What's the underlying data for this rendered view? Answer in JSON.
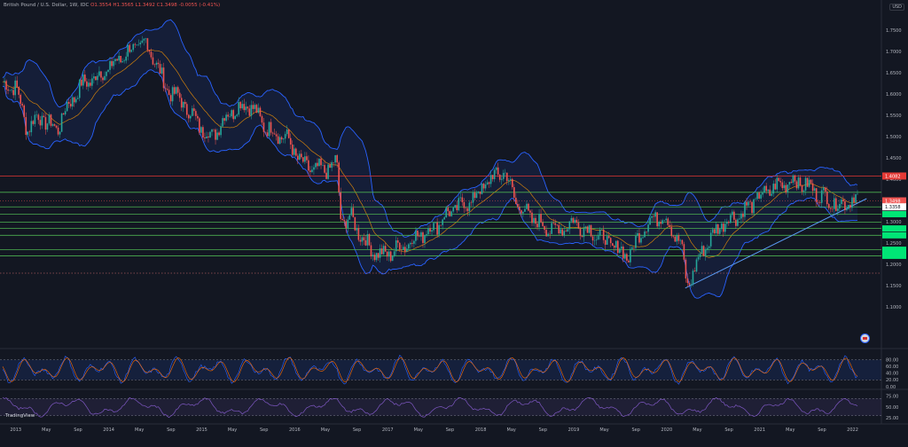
{
  "header": {
    "symbol": "British Pound / U.S. Dollar, 1W, IDC",
    "open": "O1.3554",
    "high": "H1.3565",
    "low": "L1.3492",
    "close": "C1.3498",
    "change": "-0.0055 (-0.41%)"
  },
  "currency_label": "USD",
  "brand": "TradingView",
  "price_badges": {
    "resistance": "1.4082",
    "last": "1.3498",
    "countdown": "4d 13h",
    "level_1": "1.3358"
  },
  "chart_data": [
    {
      "type": "line",
      "title": "",
      "x_ticks": [
        "2013",
        "May",
        "Sep",
        "2014",
        "May",
        "Sep",
        "2015",
        "May",
        "Sep",
        "2016",
        "May",
        "Sep",
        "2017",
        "May",
        "Sep",
        "2018",
        "May",
        "Sep",
        "2019",
        "May",
        "Sep",
        "2020",
        "May",
        "Sep",
        "2021",
        "May",
        "Sep",
        "2022"
      ],
      "y_ticks": [
        "1.7500",
        "1.7000",
        "1.6500",
        "1.6000",
        "1.5500",
        "1.5000",
        "1.4500",
        "1.4000",
        "1.3500",
        "1.3000",
        "1.2500",
        "1.2000",
        "1.1500",
        "1.1000"
      ],
      "ylim": [
        1.08,
        1.78
      ],
      "axis_position": "right",
      "grid": false,
      "series": [
        {
          "x": [
            2013.0,
            2013.12,
            2013.25,
            2013.35,
            2013.45,
            2013.55,
            2013.7,
            2013.85,
            2014.0,
            2014.2,
            2014.4,
            2014.5,
            2014.6,
            2014.8,
            2015.0,
            2015.1,
            2015.3,
            2015.5,
            2015.7,
            2015.9,
            2016.1,
            2016.3,
            2016.45,
            2016.5,
            2016.6,
            2016.8,
            2016.95,
            2017.2,
            2017.5,
            2017.7,
            2017.9,
            2018.1,
            2018.25,
            2018.4,
            2018.6,
            2018.8,
            2019.0,
            2019.25,
            2019.45,
            2019.6,
            2019.75,
            2019.95,
            2020.15,
            2020.22,
            2020.4,
            2020.6,
            2020.8,
            2021.0,
            2021.15,
            2021.35,
            2021.55,
            2021.75,
            2021.9,
            2022.0,
            2022.05
          ],
          "y": [
            1.62,
            1.52,
            1.55,
            1.53,
            1.52,
            1.57,
            1.62,
            1.64,
            1.66,
            1.7,
            1.72,
            1.68,
            1.62,
            1.58,
            1.52,
            1.5,
            1.56,
            1.58,
            1.52,
            1.5,
            1.43,
            1.42,
            1.44,
            1.3,
            1.31,
            1.24,
            1.22,
            1.25,
            1.29,
            1.33,
            1.35,
            1.4,
            1.42,
            1.34,
            1.3,
            1.28,
            1.3,
            1.27,
            1.24,
            1.22,
            1.29,
            1.32,
            1.25,
            1.15,
            1.24,
            1.3,
            1.32,
            1.36,
            1.38,
            1.4,
            1.38,
            1.35,
            1.34,
            1.36,
            1.3498
          ]
        }
      ],
      "horizontal_levels": [
        1.4082,
        1.37,
        1.3358,
        1.3186,
        1.3,
        1.285,
        1.2689,
        1.235,
        1.2208
      ],
      "trendline": {
        "from": [
          2020.2,
          1.145
        ],
        "to": [
          2022.15,
          1.355
        ]
      },
      "dotted_level": 1.18
    },
    {
      "type": "line",
      "title": "",
      "y_ticks": [
        "80.00",
        "60.00",
        "40.00",
        "20.00",
        "0.00"
      ],
      "ylim": [
        0,
        100
      ],
      "axis_position": "right",
      "bands": [
        20,
        80
      ]
    },
    {
      "type": "line",
      "title": "",
      "y_ticks": [
        "75.00",
        "50.00",
        "25.00"
      ],
      "ylim": [
        15,
        85
      ],
      "axis_position": "right"
    }
  ],
  "colors": {
    "background": "#131722",
    "bull": "#26a69a",
    "bear": "#ef5350",
    "bb_band": "#2962ff",
    "bb_basis": "#ff9800",
    "support": "#4caf50",
    "resistance": "#e53935",
    "rsi": "#7e57c2",
    "stoch_k": "#2962ff",
    "stoch_d": "#ff6d00",
    "text": "#b2b5be"
  }
}
